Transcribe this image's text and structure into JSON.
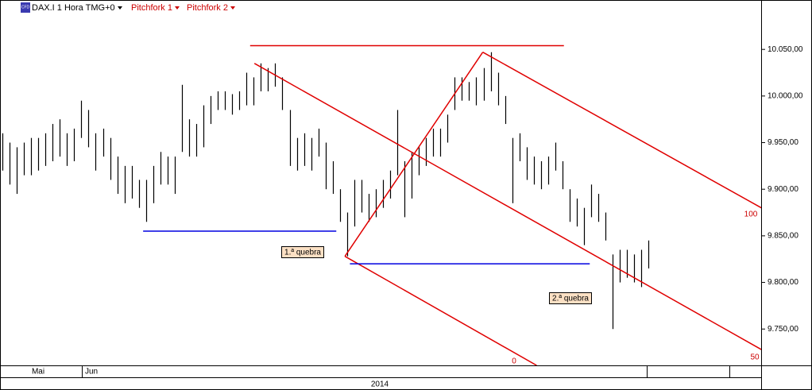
{
  "chart_data": {
    "type": "hilo",
    "header": {
      "symbol": "DAX.I 1 Hora TMG+0",
      "icon": "CFD",
      "menus": [
        "Pitchfork 1",
        "Pitchfork 2"
      ]
    },
    "color": "#000000",
    "high": [
      9960,
      9950,
      9945,
      9950,
      9955,
      9955,
      9960,
      9970,
      9975,
      9960,
      9965,
      9995,
      9985,
      9960,
      9965,
      9955,
      9935,
      9925,
      9925,
      9910,
      9910,
      9925,
      9940,
      9935,
      9935,
      10012,
      9975,
      9970,
      9990,
      10000,
      10005,
      10005,
      10002,
      10005,
      10025,
      10020,
      10035,
      10030,
      10035,
      10020,
      9985,
      9955,
      9960,
      9955,
      9965,
      9950,
      9930,
      9900,
      9875,
      9910,
      9910,
      9895,
      9900,
      9910,
      9920,
      9985,
      9930,
      9940,
      9945,
      9955,
      9965,
      9965,
      9980,
      10020,
      10020,
      10015,
      10020,
      10030,
      10047,
      10025,
      10000,
      9955,
      9960,
      9945,
      9935,
      9930,
      9935,
      9950,
      9930,
      9900,
      9890,
      9880,
      9905,
      9895,
      9875,
      9830,
      9835,
      9835,
      9830,
      9835,
      9845
    ],
    "low": [
      9920,
      9905,
      9895,
      9915,
      9915,
      9920,
      9925,
      9930,
      9935,
      9925,
      9930,
      9955,
      9945,
      9920,
      9935,
      9910,
      9895,
      9885,
      9890,
      9880,
      9865,
      9885,
      9905,
      9905,
      9895,
      9940,
      9935,
      9935,
      9945,
      9970,
      9985,
      9985,
      9980,
      9985,
      9990,
      9990,
      10005,
      10005,
      10010,
      9985,
      9925,
      9920,
      9925,
      9920,
      9935,
      9900,
      9895,
      9865,
      9828,
      9860,
      9875,
      9865,
      9870,
      9880,
      9890,
      9915,
      9870,
      9890,
      9915,
      9925,
      9935,
      9935,
      9950,
      9985,
      9995,
      9995,
      9990,
      9995,
      10005,
      9990,
      9970,
      9885,
      9930,
      9910,
      9905,
      9900,
      9905,
      9920,
      9900,
      9865,
      9860,
      9840,
      9870,
      9865,
      9845,
      9750,
      9800,
      9805,
      9800,
      9795,
      9815
    ],
    "ylim": [
      9711,
      10103
    ],
    "yticks": [
      {
        "value": 10050,
        "label": "10.050,00"
      },
      {
        "value": 10000,
        "label": "10.000,00"
      },
      {
        "value": 9950,
        "label": "9.950,00"
      },
      {
        "value": 9900,
        "label": "9.900,00"
      },
      {
        "value": 9850,
        "label": "9.850,00"
      },
      {
        "value": 9800,
        "label": "9.800,00"
      },
      {
        "value": 9750,
        "label": "9.750,00"
      }
    ],
    "months": [
      "Mai",
      "Jun"
    ],
    "year": "2014",
    "lines": [
      {
        "x1": 34.5,
        "y1": 10054,
        "x2": 78.2,
        "y2": 10054,
        "color": "#e00000"
      },
      {
        "x1": 35.1,
        "y1": 10035,
        "x2": 105.7,
        "y2": 9728,
        "color": "#e00000"
      },
      {
        "x1": 66.9,
        "y1": 10047,
        "x2": 105.7,
        "y2": 9880,
        "color": "#e00000"
      },
      {
        "x1": 47.7,
        "y1": 9828,
        "x2": 74.4,
        "y2": 9711,
        "color": "#e00000"
      },
      {
        "x1": 47.7,
        "y1": 9828,
        "x2": 66.9,
        "y2": 10047,
        "color": "#e00000"
      },
      {
        "x1": 19.6,
        "y1": 9855,
        "x2": 46.5,
        "y2": 9855,
        "color": "#0000e0"
      },
      {
        "x1": 48.4,
        "y1": 9820,
        "x2": 81.8,
        "y2": 9820,
        "color": "#0000e0"
      }
    ],
    "annotations": [
      "1.ª quebra",
      "2.ª quebra"
    ],
    "fork_labels": [
      "100",
      "50",
      "0"
    ]
  }
}
